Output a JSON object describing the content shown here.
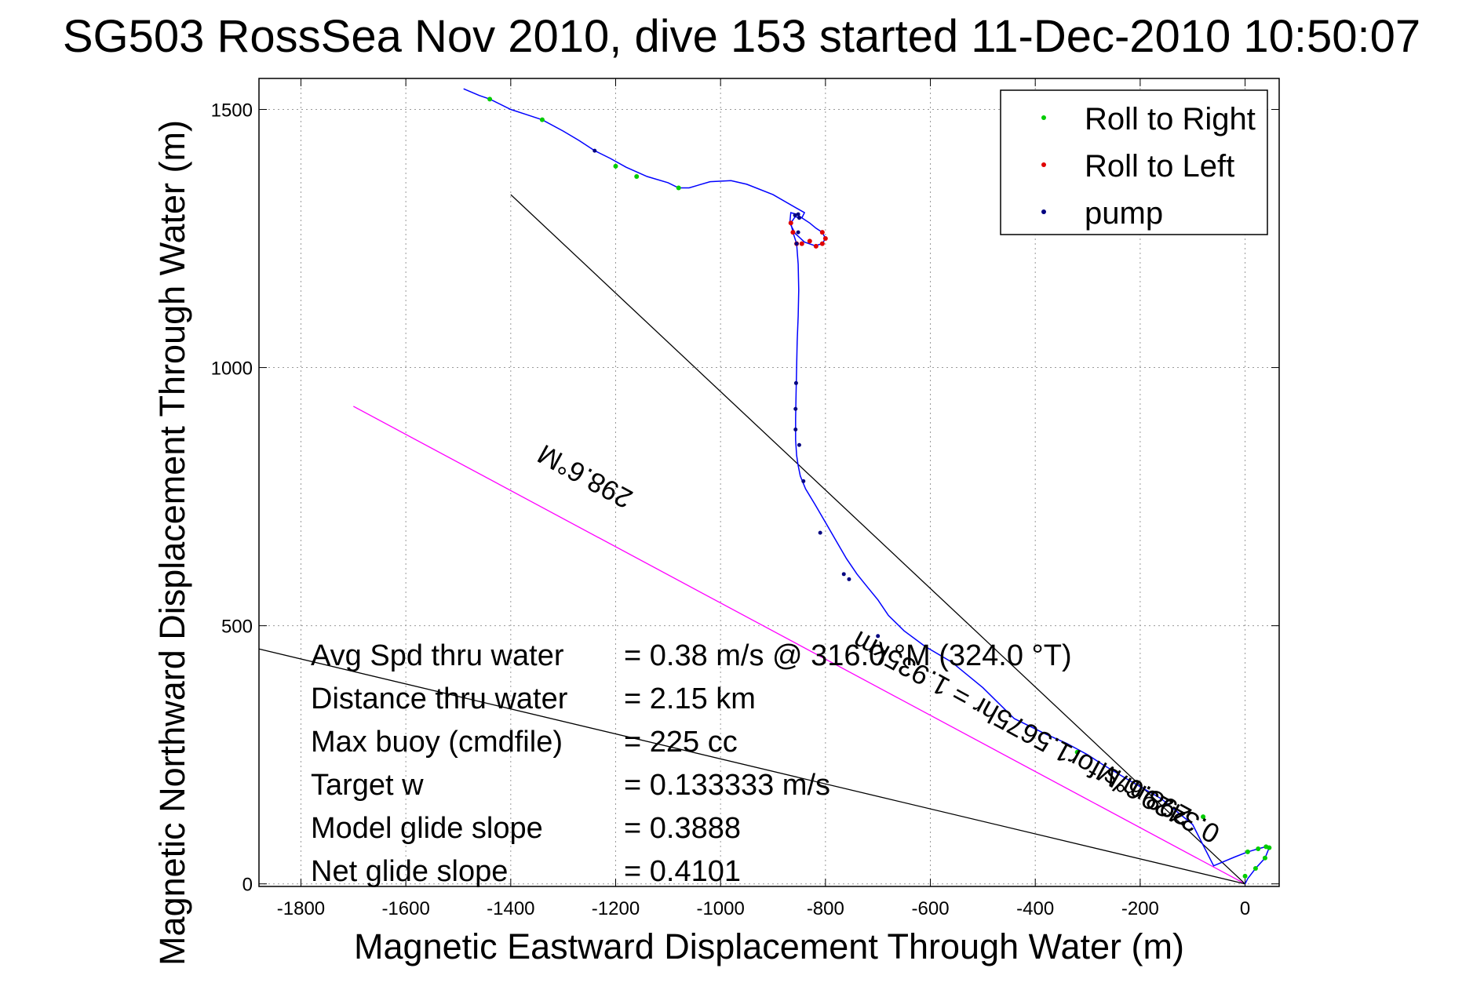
{
  "chart_data": {
    "type": "line",
    "title": "SG503 RossSea Nov 2010, dive 153 started 11-Dec-2010 10:50:07",
    "xlabel": "Magnetic Eastward Displacement Through Water (m)",
    "ylabel": "Magnetic Northward Displacement Through Water (m)",
    "xlim": [
      -1880,
      65
    ],
    "ylim": [
      -5,
      1560
    ],
    "xticks": [
      -1800,
      -1600,
      -1400,
      -1200,
      -1000,
      -800,
      -600,
      -400,
      -200,
      0
    ],
    "yticks": [
      0,
      500,
      1000,
      1500
    ],
    "grid": true,
    "legend_position": "top-right",
    "legend": [
      {
        "label": "Roll to Right",
        "color": "#00cc00"
      },
      {
        "label": "Roll to Left",
        "color": "#e00000"
      },
      {
        "label": "pump",
        "color": "#000080"
      }
    ],
    "track": {
      "color": "#0000ff",
      "x": [
        0,
        5,
        20,
        38,
        46,
        40,
        25,
        5,
        -20,
        -60,
        -100,
        -160,
        -220,
        -270,
        -300,
        -318,
        -340,
        -380,
        -440,
        -500,
        -560,
        -610,
        -650,
        -680,
        -700,
        -720,
        -740,
        -760,
        -780,
        -800,
        -820,
        -838,
        -848,
        -852,
        -855,
        -857,
        -857,
        -856,
        -855,
        -854,
        -852,
        -851,
        -852,
        -855,
        -862,
        -866,
        -858,
        -845,
        -830,
        -818,
        -806,
        -800,
        -806,
        -820,
        -840,
        -858,
        -868,
        -866,
        -855,
        -845,
        -840,
        -900,
        -950,
        -980,
        -1020,
        -1060,
        -1080,
        -1100,
        -1140,
        -1180,
        -1210,
        -1240,
        -1270,
        -1300,
        -1340,
        -1370,
        -1400,
        -1440,
        -1460,
        -1490
      ],
      "y": [
        0,
        10,
        30,
        50,
        70,
        72,
        68,
        62,
        52,
        35,
        115,
        165,
        200,
        230,
        250,
        260,
        272,
        290,
        320,
        380,
        430,
        460,
        490,
        520,
        550,
        575,
        600,
        630,
        665,
        700,
        735,
        765,
        790,
        810,
        830,
        860,
        900,
        950,
        1000,
        1050,
        1100,
        1150,
        1200,
        1240,
        1262,
        1280,
        1292,
        1290,
        1280,
        1270,
        1262,
        1250,
        1240,
        1236,
        1243,
        1260,
        1280,
        1300,
        1297,
        1290,
        1300,
        1335,
        1355,
        1362,
        1360,
        1348,
        1348,
        1358,
        1370,
        1388,
        1405,
        1420,
        1440,
        1458,
        1480,
        1490,
        1500,
        1520,
        1527,
        1540
      ]
    },
    "roll_right_points": {
      "x": [
        -1440,
        -1340,
        -1200,
        -1160,
        -1080,
        -320,
        -80,
        0,
        20,
        38,
        46,
        40,
        25,
        5
      ],
      "y": [
        1520,
        1480,
        1390,
        1370,
        1348,
        255,
        130,
        15,
        30,
        50,
        70,
        72,
        68,
        62
      ]
    },
    "roll_left_points": {
      "x": [
        -866,
        -862,
        -855,
        -845,
        -830,
        -818,
        -806,
        -800,
        -806
      ],
      "y": [
        1280,
        1262,
        1240,
        1240,
        1245,
        1235,
        1240,
        1250,
        1262
      ]
    },
    "pump_points": {
      "x": [
        -1240,
        -858,
        -852,
        -850,
        -852,
        -855,
        -856,
        -857,
        -857,
        -850,
        -842,
        -810,
        -765,
        -755,
        -700
      ],
      "y": [
        1420,
        1295,
        1297,
        1290,
        1262,
        1240,
        970,
        920,
        880,
        850,
        780,
        680,
        600,
        590,
        480
      ]
    },
    "reference_lines": [
      {
        "name": "magenta-heading-line",
        "color": "#ff00ff",
        "x": [
          0,
          -1700
        ],
        "y": [
          0,
          925
        ]
      },
      {
        "name": "black-line-upper",
        "color": "#000000",
        "x": [
          0,
          -1400
        ],
        "y": [
          0,
          1335
        ]
      },
      {
        "name": "black-line-lower",
        "color": "#000000",
        "x": [
          0,
          -1880
        ],
        "y": [
          0,
          455
        ]
      }
    ],
    "annotations": [
      {
        "text": "298.6°M",
        "x": -1250,
        "y": 805,
        "angle": 208.6
      },
      {
        "text": "298.6°M",
        "x": -185,
        "y": 190,
        "angle": 208.6
      },
      {
        "text": "0.3429m/s for1.5675hr = 1.935km",
        "x": -390,
        "y": 300,
        "angle": 208.6
      }
    ],
    "stats": [
      {
        "label": "Avg Spd thru water",
        "value": "=  0.38 m/s @ 316.0 °M (324.0 °T)"
      },
      {
        "label": "Distance thru water",
        "value": "=  2.15 km"
      },
      {
        "label": "Max buoy (cmdfile)",
        "value": "= 225 cc"
      },
      {
        "label": "Target w",
        "value": "= 0.133333 m/s"
      },
      {
        "label": "Model glide slope",
        "value": "= 0.3888"
      },
      {
        "label": "Net glide slope",
        "value": "= 0.4101"
      }
    ]
  }
}
